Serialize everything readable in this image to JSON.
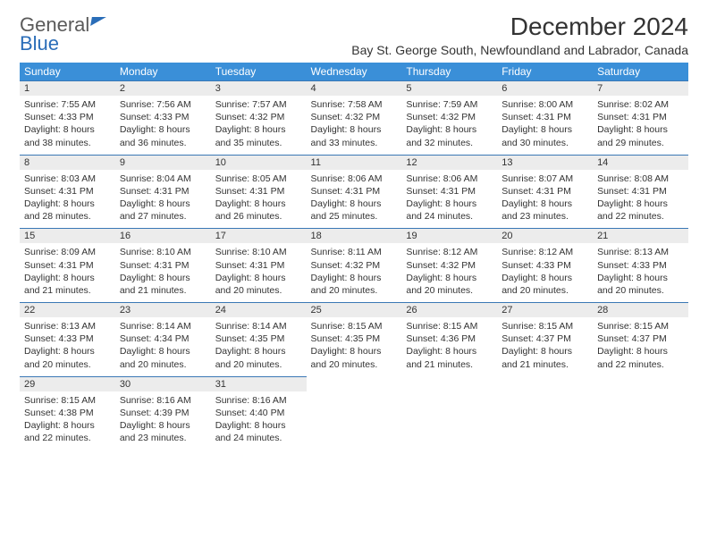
{
  "logo": {
    "word1": "General",
    "word2": "Blue"
  },
  "title": "December 2024",
  "location": "Bay St. George South, Newfoundland and Labrador, Canada",
  "colors": {
    "header_bg": "#3a8fd8",
    "header_text": "#ffffff",
    "daynum_bg": "#ececec",
    "border_top": "#3a78b5",
    "logo_blue": "#2a6db8",
    "logo_gray": "#5a5a5a"
  },
  "weekdays": [
    "Sunday",
    "Monday",
    "Tuesday",
    "Wednesday",
    "Thursday",
    "Friday",
    "Saturday"
  ],
  "weeks": [
    {
      "nums": [
        "1",
        "2",
        "3",
        "4",
        "5",
        "6",
        "7"
      ],
      "cells": [
        {
          "sr": "7:55 AM",
          "ss": "4:33 PM",
          "dl": "8 hours and 38 minutes."
        },
        {
          "sr": "7:56 AM",
          "ss": "4:33 PM",
          "dl": "8 hours and 36 minutes."
        },
        {
          "sr": "7:57 AM",
          "ss": "4:32 PM",
          "dl": "8 hours and 35 minutes."
        },
        {
          "sr": "7:58 AM",
          "ss": "4:32 PM",
          "dl": "8 hours and 33 minutes."
        },
        {
          "sr": "7:59 AM",
          "ss": "4:32 PM",
          "dl": "8 hours and 32 minutes."
        },
        {
          "sr": "8:00 AM",
          "ss": "4:31 PM",
          "dl": "8 hours and 30 minutes."
        },
        {
          "sr": "8:02 AM",
          "ss": "4:31 PM",
          "dl": "8 hours and 29 minutes."
        }
      ]
    },
    {
      "nums": [
        "8",
        "9",
        "10",
        "11",
        "12",
        "13",
        "14"
      ],
      "cells": [
        {
          "sr": "8:03 AM",
          "ss": "4:31 PM",
          "dl": "8 hours and 28 minutes."
        },
        {
          "sr": "8:04 AM",
          "ss": "4:31 PM",
          "dl": "8 hours and 27 minutes."
        },
        {
          "sr": "8:05 AM",
          "ss": "4:31 PM",
          "dl": "8 hours and 26 minutes."
        },
        {
          "sr": "8:06 AM",
          "ss": "4:31 PM",
          "dl": "8 hours and 25 minutes."
        },
        {
          "sr": "8:06 AM",
          "ss": "4:31 PM",
          "dl": "8 hours and 24 minutes."
        },
        {
          "sr": "8:07 AM",
          "ss": "4:31 PM",
          "dl": "8 hours and 23 minutes."
        },
        {
          "sr": "8:08 AM",
          "ss": "4:31 PM",
          "dl": "8 hours and 22 minutes."
        }
      ]
    },
    {
      "nums": [
        "15",
        "16",
        "17",
        "18",
        "19",
        "20",
        "21"
      ],
      "cells": [
        {
          "sr": "8:09 AM",
          "ss": "4:31 PM",
          "dl": "8 hours and 21 minutes."
        },
        {
          "sr": "8:10 AM",
          "ss": "4:31 PM",
          "dl": "8 hours and 21 minutes."
        },
        {
          "sr": "8:10 AM",
          "ss": "4:31 PM",
          "dl": "8 hours and 20 minutes."
        },
        {
          "sr": "8:11 AM",
          "ss": "4:32 PM",
          "dl": "8 hours and 20 minutes."
        },
        {
          "sr": "8:12 AM",
          "ss": "4:32 PM",
          "dl": "8 hours and 20 minutes."
        },
        {
          "sr": "8:12 AM",
          "ss": "4:33 PM",
          "dl": "8 hours and 20 minutes."
        },
        {
          "sr": "8:13 AM",
          "ss": "4:33 PM",
          "dl": "8 hours and 20 minutes."
        }
      ]
    },
    {
      "nums": [
        "22",
        "23",
        "24",
        "25",
        "26",
        "27",
        "28"
      ],
      "cells": [
        {
          "sr": "8:13 AM",
          "ss": "4:33 PM",
          "dl": "8 hours and 20 minutes."
        },
        {
          "sr": "8:14 AM",
          "ss": "4:34 PM",
          "dl": "8 hours and 20 minutes."
        },
        {
          "sr": "8:14 AM",
          "ss": "4:35 PM",
          "dl": "8 hours and 20 minutes."
        },
        {
          "sr": "8:15 AM",
          "ss": "4:35 PM",
          "dl": "8 hours and 20 minutes."
        },
        {
          "sr": "8:15 AM",
          "ss": "4:36 PM",
          "dl": "8 hours and 21 minutes."
        },
        {
          "sr": "8:15 AM",
          "ss": "4:37 PM",
          "dl": "8 hours and 21 minutes."
        },
        {
          "sr": "8:15 AM",
          "ss": "4:37 PM",
          "dl": "8 hours and 22 minutes."
        }
      ]
    },
    {
      "nums": [
        "29",
        "30",
        "31",
        "",
        "",
        "",
        ""
      ],
      "cells": [
        {
          "sr": "8:15 AM",
          "ss": "4:38 PM",
          "dl": "8 hours and 22 minutes."
        },
        {
          "sr": "8:16 AM",
          "ss": "4:39 PM",
          "dl": "8 hours and 23 minutes."
        },
        {
          "sr": "8:16 AM",
          "ss": "4:40 PM",
          "dl": "8 hours and 24 minutes."
        },
        null,
        null,
        null,
        null
      ]
    }
  ],
  "labels": {
    "sunrise": "Sunrise:",
    "sunset": "Sunset:",
    "daylight": "Daylight:"
  }
}
